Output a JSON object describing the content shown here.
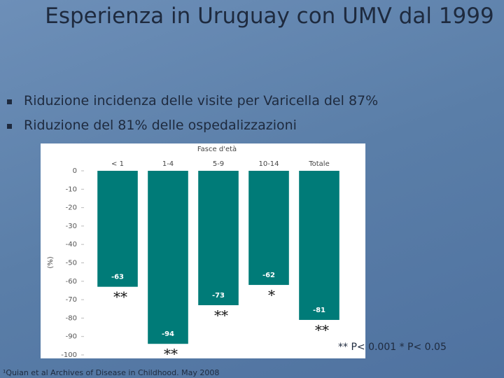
{
  "slide": {
    "title": "Esperienza in Uruguay con UMV dal 1999",
    "bullets": [
      "Riduzione incidenza delle visite per Varicella del 87%",
      "Riduzione del 81% delle ospedalizzazioni"
    ],
    "significance_note": "** P< 0.001 * P< 0.05",
    "footnote": "¹Quian et al Archives of Disease in Childhood. May 2008"
  },
  "chart_data": {
    "type": "bar",
    "x_label": "Fasce d'età",
    "y_label": "(%)",
    "categories": [
      "< 1",
      "1-4",
      "5-9",
      "10-14",
      "Totale"
    ],
    "values": [
      -63,
      -94,
      -73,
      -62,
      -81
    ],
    "annotations": [
      "**",
      "**",
      "**",
      "*",
      "**"
    ],
    "color": "#007b78",
    "ylim": [
      -100,
      0
    ],
    "yticks": [
      0,
      -10,
      -20,
      -30,
      -40,
      -50,
      -60,
      -70,
      -80,
      -90,
      -100
    ],
    "grid": false
  }
}
